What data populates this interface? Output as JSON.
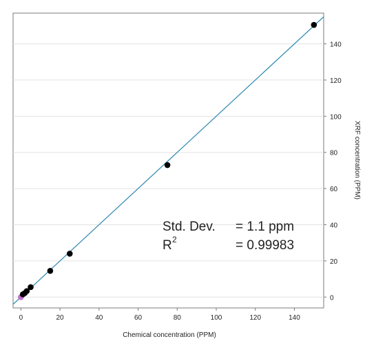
{
  "chart_data": {
    "type": "scatter",
    "title": "",
    "xlabel": "Chemical concentration (PPM)",
    "ylabel": "XRF concentration (PPM)",
    "xlim": [
      -4,
      155
    ],
    "ylim": [
      -6,
      157
    ],
    "x_ticks": [
      0,
      20,
      40,
      60,
      80,
      100,
      120,
      140
    ],
    "y_ticks": [
      0,
      20,
      40,
      60,
      80,
      100,
      120,
      140
    ],
    "y_axis_side": "right",
    "grid": "horizontal",
    "points": [
      {
        "x": 0,
        "y": 0,
        "color": "#c070c8"
      },
      {
        "x": 1,
        "y": 1.5,
        "color": "#000000"
      },
      {
        "x": 2,
        "y": 2.2,
        "color": "#000000"
      },
      {
        "x": 3,
        "y": 3.3,
        "color": "#000000"
      },
      {
        "x": 5,
        "y": 5.5,
        "color": "#000000"
      },
      {
        "x": 15,
        "y": 14.5,
        "color": "#000000"
      },
      {
        "x": 25,
        "y": 24,
        "color": "#000000"
      },
      {
        "x": 75,
        "y": 73,
        "color": "#000000"
      },
      {
        "x": 150,
        "y": 150.5,
        "color": "#000000"
      }
    ],
    "fit_line": {
      "slope": 1.0,
      "intercept": 0,
      "color": "#3a8fb5"
    },
    "annotations": {
      "std_dev_label": "Std. Dev.",
      "std_dev_value": "= 1.1 ppm",
      "r2_label": "R",
      "r2_exponent": "2",
      "r2_value": "= 0.99983"
    }
  }
}
